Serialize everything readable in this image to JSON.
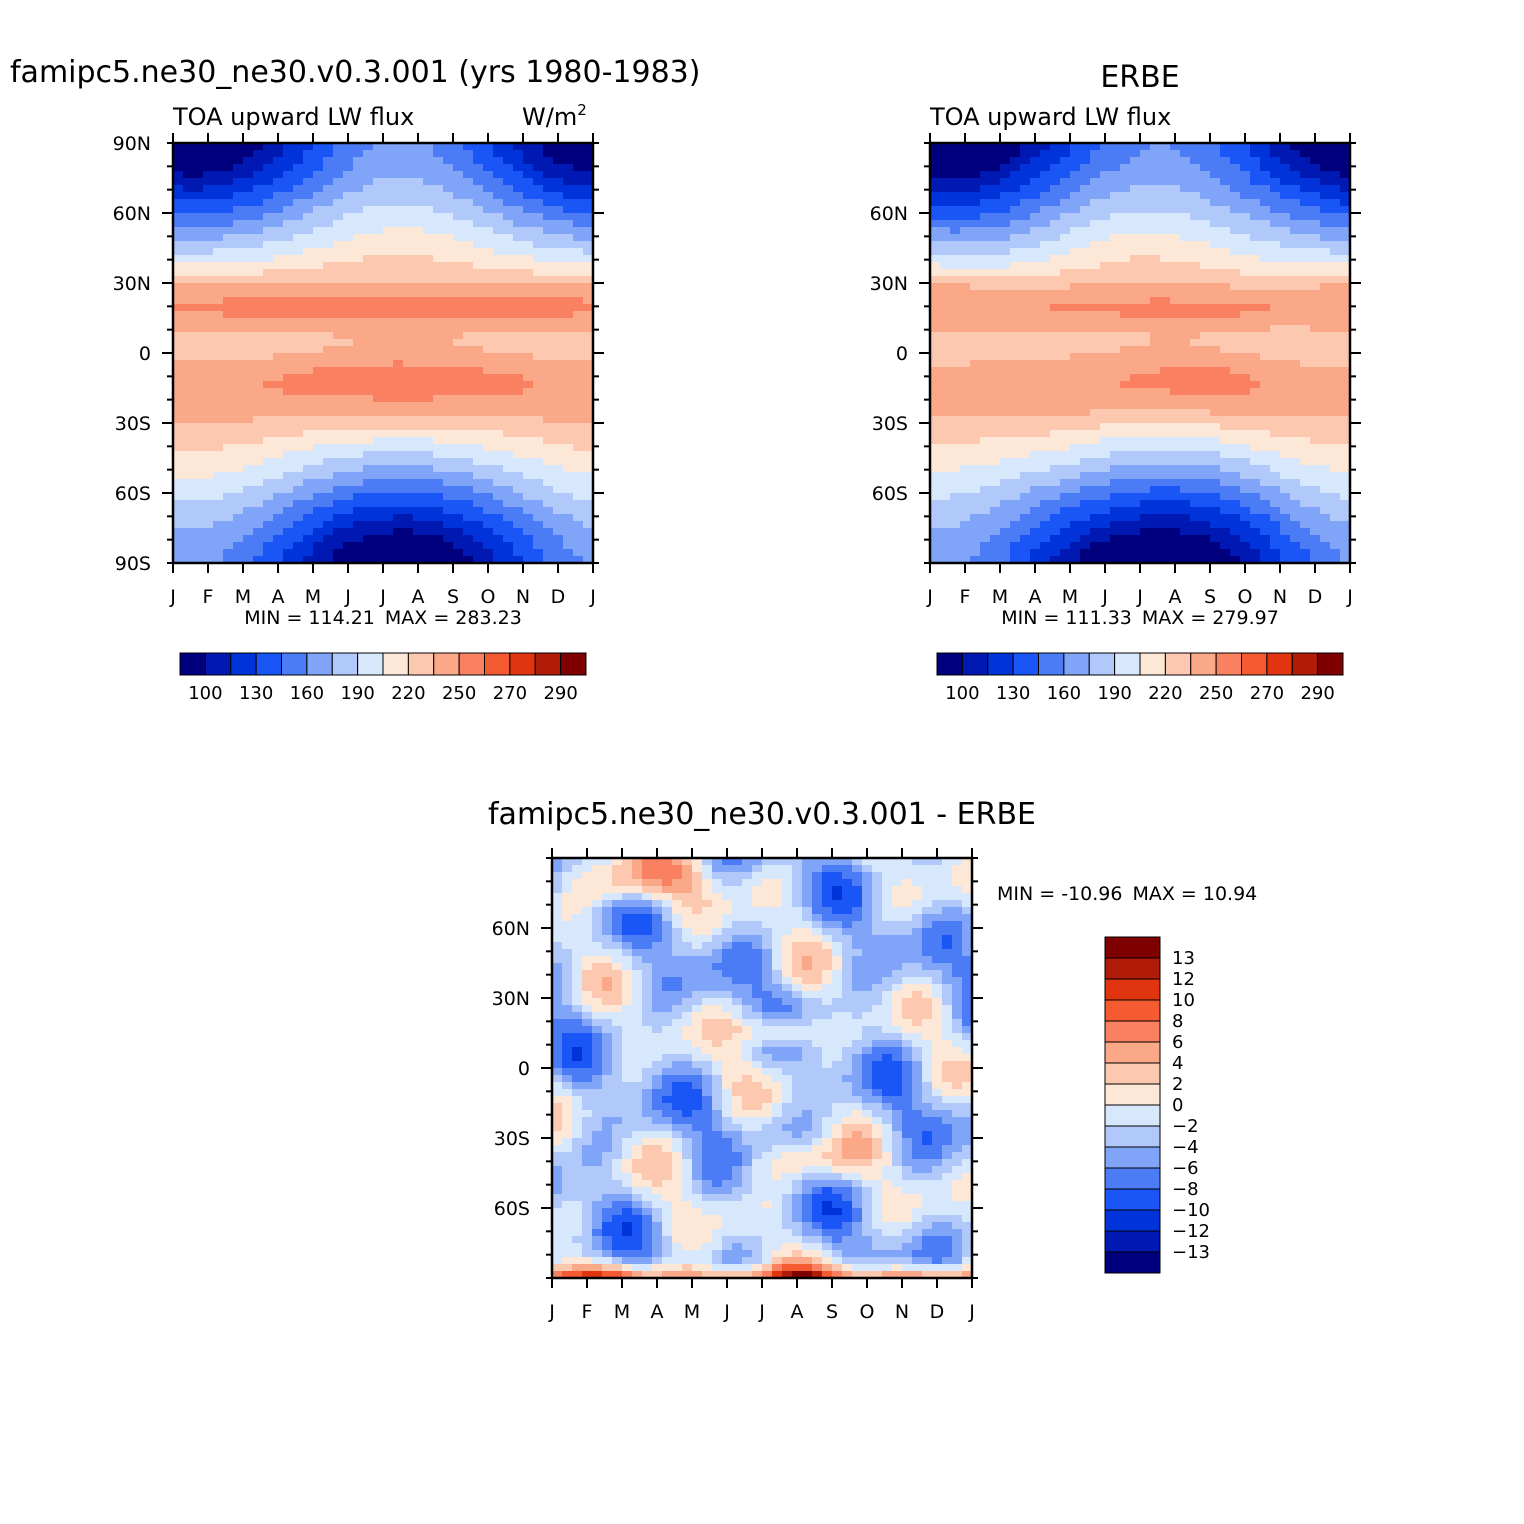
{
  "chart_data": [
    {
      "type": "heatmap",
      "figure_title": "famipc5.ne30_ne30.v0.3.001 (yrs 1980-1983)",
      "left_string": "TOA upward LW flux",
      "right_string": "W/m",
      "right_string_sup": "2",
      "xticks": [
        "J",
        "F",
        "M",
        "A",
        "M",
        "J",
        "J",
        "A",
        "S",
        "O",
        "N",
        "D",
        "J"
      ],
      "yticks": [
        "90N",
        "60N",
        "30N",
        "0",
        "30S",
        "60S",
        "90S"
      ],
      "ylim": [
        -90,
        90
      ],
      "min_label": "MIN = 114.21",
      "max_label": "MAX = 283.23",
      "colorbar_labels": [
        "100",
        "130",
        "160",
        "190",
        "220",
        "250",
        "270",
        "290"
      ],
      "colors": [
        "#00007f",
        "#0019b3",
        "#0033d9",
        "#1a55f5",
        "#4c7cf5",
        "#80a4f8",
        "#b0c8fa",
        "#d8e8fc",
        "#fde8d8",
        "#fcc8b0",
        "#fba888",
        "#f98060",
        "#f55a30",
        "#e03510",
        "#b01c08",
        "#7f0000"
      ],
      "levels": [
        100,
        115,
        130,
        145,
        160,
        175,
        190,
        205,
        220,
        235,
        250,
        260,
        270,
        280,
        290
      ]
    },
    {
      "type": "heatmap",
      "figure_title": "ERBE",
      "left_string": "TOA upward LW flux",
      "xticks": [
        "J",
        "F",
        "M",
        "A",
        "M",
        "J",
        "J",
        "A",
        "S",
        "O",
        "N",
        "D",
        "J"
      ],
      "yticks": [
        "60N",
        "30N",
        "0",
        "30S",
        "60S"
      ],
      "ylim": [
        -90,
        90
      ],
      "min_label": "MIN = 111.33",
      "max_label": "MAX = 279.97",
      "colorbar_labels": [
        "100",
        "130",
        "160",
        "190",
        "220",
        "250",
        "270",
        "290"
      ],
      "colors": [
        "#00007f",
        "#0019b3",
        "#0033d9",
        "#1a55f5",
        "#4c7cf5",
        "#80a4f8",
        "#b0c8fa",
        "#d8e8fc",
        "#fde8d8",
        "#fcc8b0",
        "#fba888",
        "#f98060",
        "#f55a30",
        "#e03510",
        "#b01c08",
        "#7f0000"
      ],
      "levels": [
        100,
        115,
        130,
        145,
        160,
        175,
        190,
        205,
        220,
        235,
        250,
        260,
        270,
        280,
        290
      ]
    },
    {
      "type": "heatmap",
      "figure_title": "famipc5.ne30_ne30.v0.3.001 - ERBE",
      "xticks": [
        "J",
        "F",
        "M",
        "A",
        "M",
        "J",
        "J",
        "A",
        "S",
        "O",
        "N",
        "D",
        "J"
      ],
      "yticks": [
        "60N",
        "30N",
        "0",
        "30S",
        "60S"
      ],
      "ylim": [
        -90,
        90
      ],
      "min_label": "MIN = -10.96",
      "max_label": "MAX = 10.94",
      "colorbar_labels": [
        "13",
        "12",
        "10",
        "8",
        "6",
        "4",
        "2",
        "0",
        "-2",
        "-4",
        "-6",
        "-8",
        "-10",
        "-12",
        "-13"
      ],
      "colors": [
        "#7f0000",
        "#b01c08",
        "#e03510",
        "#f55a30",
        "#f98060",
        "#fba888",
        "#fcc8b0",
        "#fde8d8",
        "#d8e8fc",
        "#b0c8fa",
        "#80a4f8",
        "#4c7cf5",
        "#1a55f5",
        "#0033d9",
        "#0019b3",
        "#00007f"
      ],
      "levels": [
        -13,
        -12,
        -10,
        -8,
        -6,
        -4,
        -2,
        0,
        2,
        4,
        6,
        8,
        10,
        12,
        13
      ]
    }
  ]
}
